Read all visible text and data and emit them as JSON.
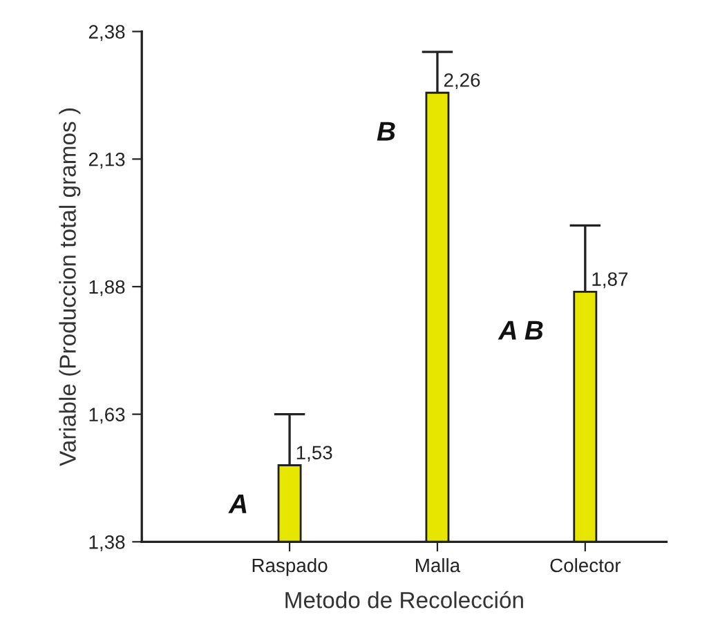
{
  "chart_data": {
    "type": "bar",
    "xlabel": "Metodo de Recolección",
    "ylabel": "Variable (Produccion total gramos )",
    "categories": [
      "Raspado",
      "Malla",
      "Colector"
    ],
    "values": [
      1.53,
      2.26,
      1.87
    ],
    "errors": [
      [
        1.53,
        1.63
      ],
      [
        2.26,
        2.34
      ],
      [
        1.87,
        2.0
      ]
    ],
    "value_labels": [
      "1,53",
      "2,26",
      "1,87"
    ],
    "color": "#e6e600",
    "ylim": [
      1.38,
      2.38
    ],
    "yticks": [
      {
        "value": 1.38,
        "label": "1,38"
      },
      {
        "value": 1.63,
        "label": "1,63"
      },
      {
        "value": 1.88,
        "label": "1,88"
      },
      {
        "value": 2.13,
        "label": "2,13"
      },
      {
        "value": 2.38,
        "label": "2,38"
      }
    ],
    "annotations": [
      "A",
      "B",
      "A B"
    ],
    "grid": false,
    "legend": false
  }
}
